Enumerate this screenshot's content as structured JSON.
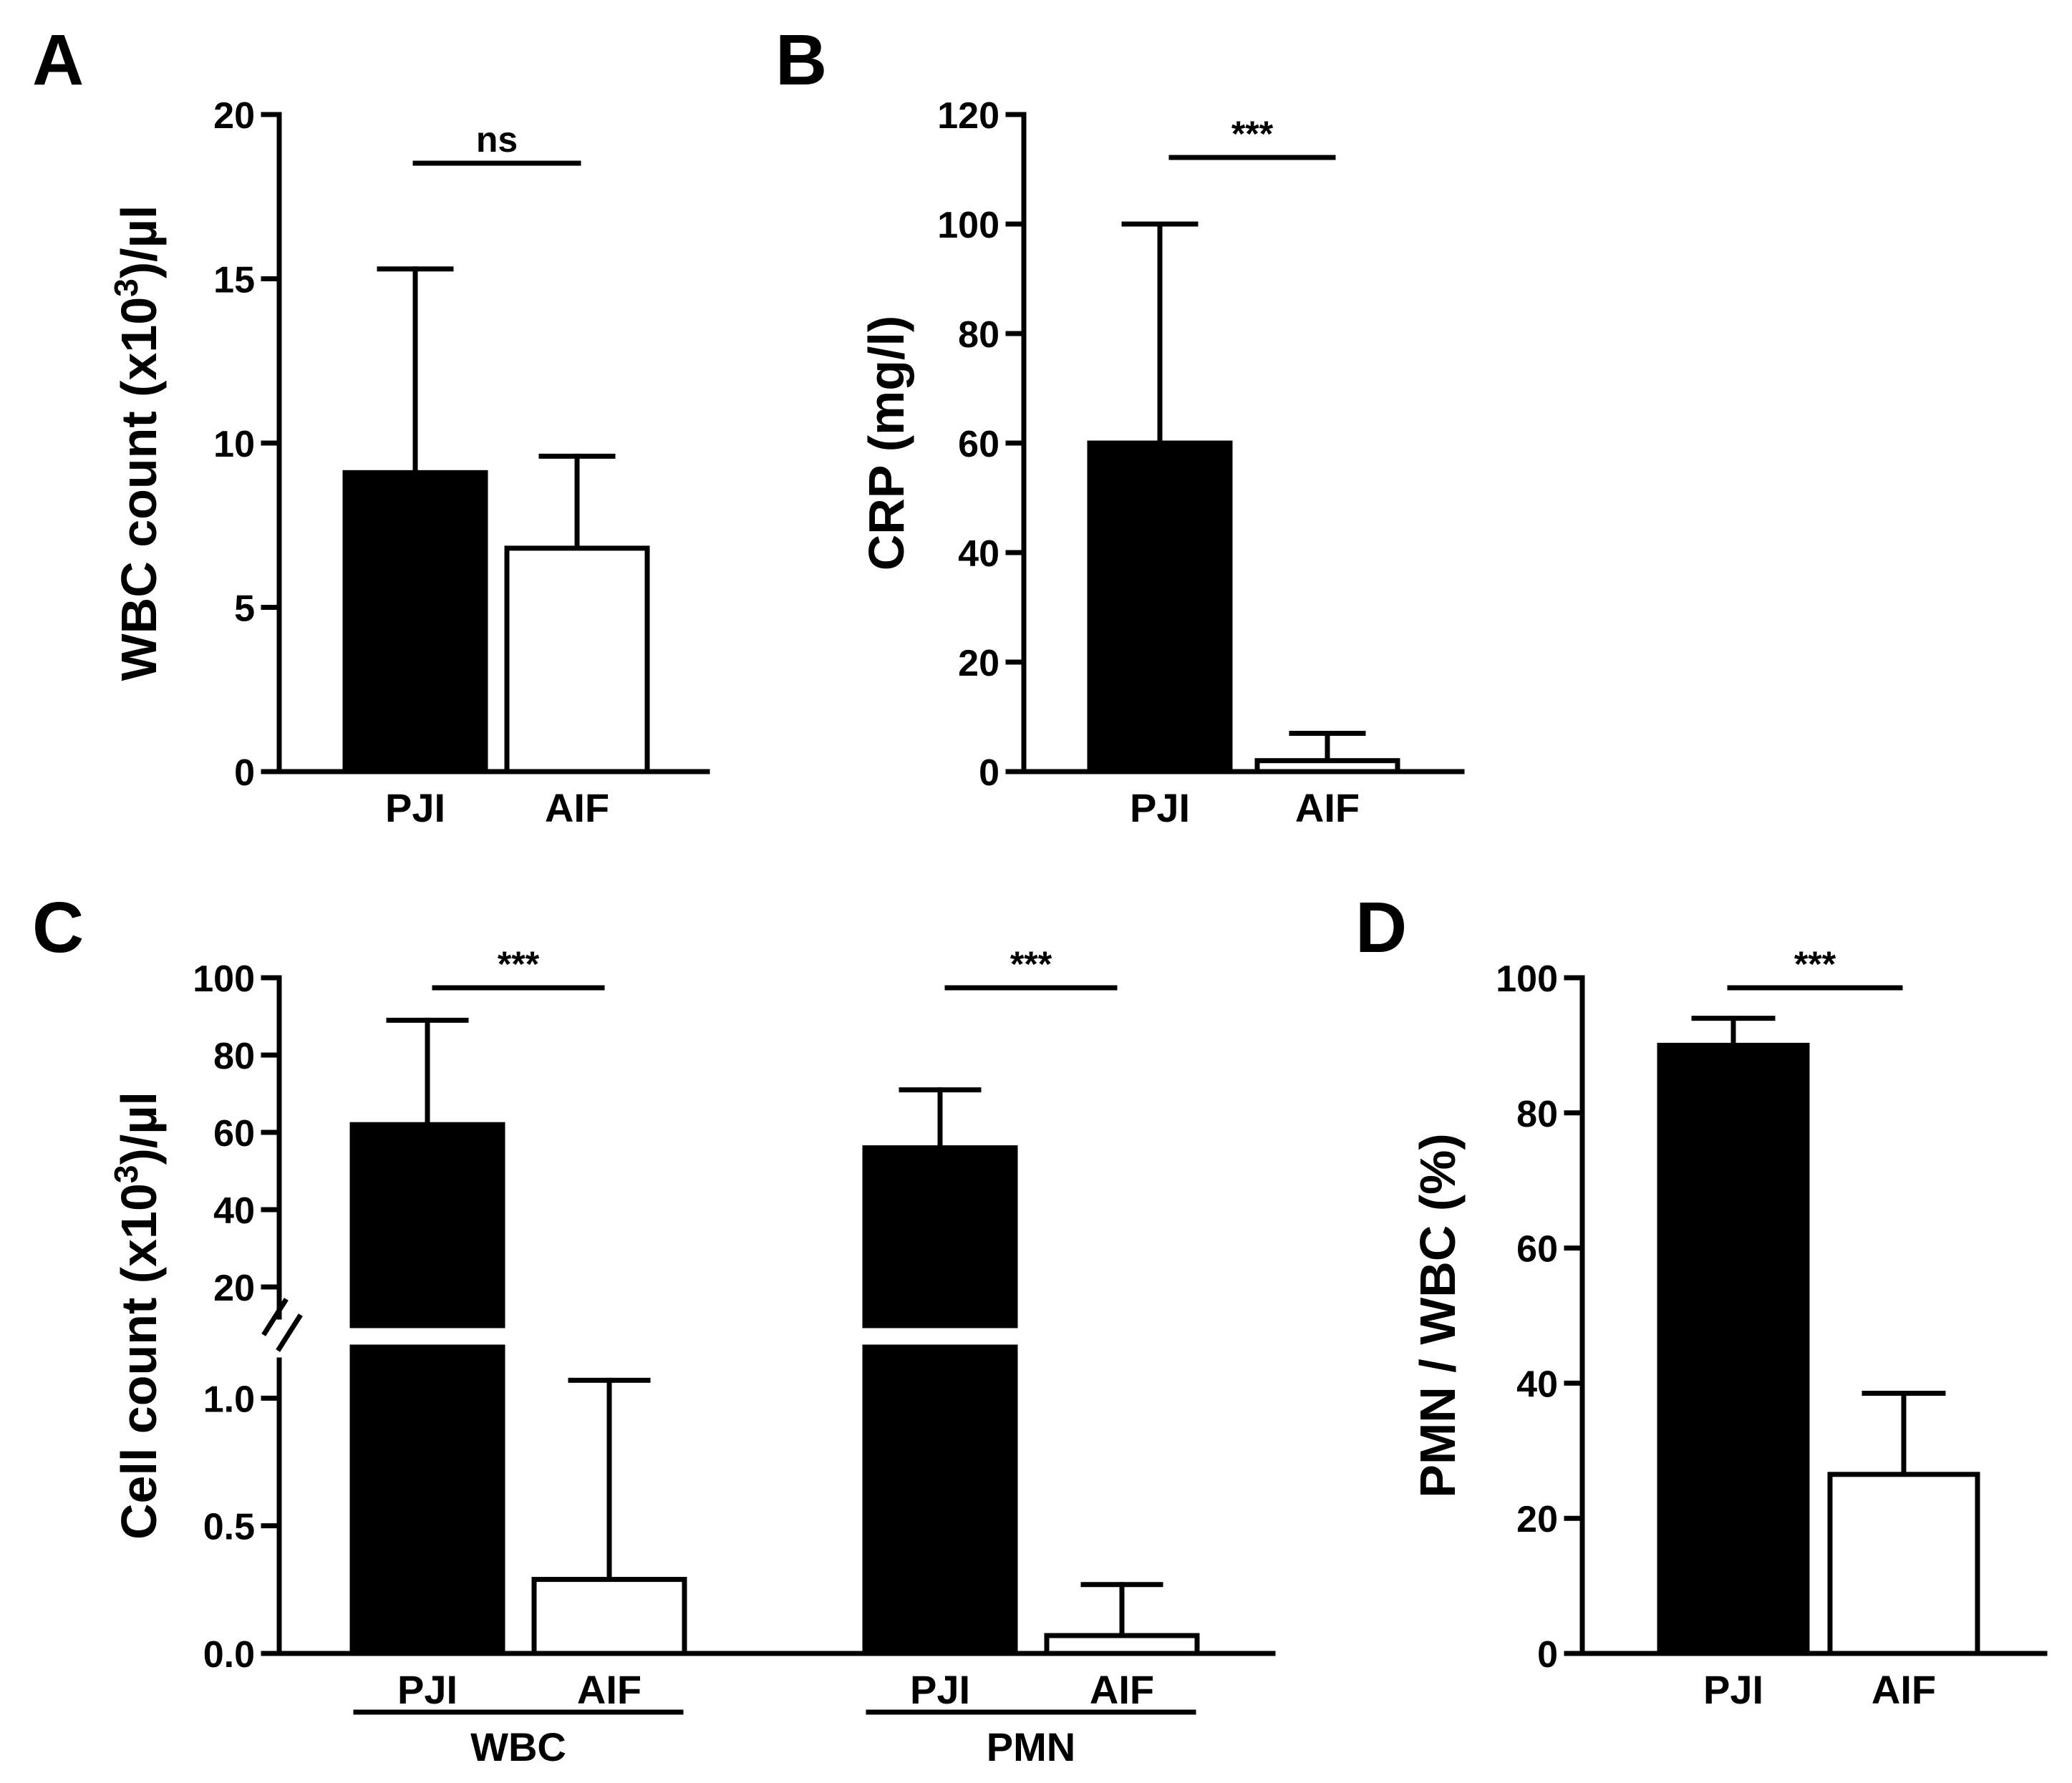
{
  "colors": {
    "filled": "#000000",
    "open": "#ffffff",
    "stroke": "#000000"
  },
  "chart_data": [
    {
      "panel": "A",
      "type": "bar",
      "categories": [
        "PJI",
        "AIF"
      ],
      "values": [
        9.1,
        6.8
      ],
      "error": [
        6.2,
        2.8
      ],
      "fills": [
        "filled",
        "open"
      ],
      "ylabel_main": "WBC count (x10",
      "ylabel_sup": "3",
      "ylabel_end": ")/µl",
      "ylim": [
        0,
        20
      ],
      "yticks": [
        0,
        5,
        10,
        15,
        20
      ],
      "ytick_labels": [
        "0",
        "5",
        "10",
        "15",
        "20"
      ],
      "significance": [
        {
          "from": 0,
          "to": 1,
          "label": "ns"
        }
      ]
    },
    {
      "panel": "B",
      "type": "bar",
      "categories": [
        "PJI",
        "AIF"
      ],
      "values": [
        60,
        2
      ],
      "error": [
        40,
        5
      ],
      "fills": [
        "filled",
        "open"
      ],
      "ylabel_main": "CRP (mg/l)",
      "ylim": [
        0,
        120
      ],
      "yticks": [
        0,
        20,
        40,
        60,
        80,
        100,
        120
      ],
      "ytick_labels": [
        "0",
        "20",
        "40",
        "60",
        "80",
        "100",
        "120"
      ],
      "significance": [
        {
          "from": 0,
          "to": 1,
          "label": "***"
        }
      ]
    },
    {
      "panel": "C",
      "type": "bar",
      "broken_axis": true,
      "groups": [
        {
          "name": "WBC",
          "categories": [
            "PJI",
            "AIF"
          ],
          "values": [
            62,
            0.29
          ],
          "error": [
            27,
            0.78
          ],
          "fills": [
            "filled",
            "open"
          ],
          "significance": "***"
        },
        {
          "name": "PMN",
          "categories": [
            "PJI",
            "AIF"
          ],
          "values": [
            56,
            0.07
          ],
          "error": [
            15,
            0.2
          ],
          "fills": [
            "filled",
            "open"
          ],
          "significance": "***"
        }
      ],
      "ylabel_main": "Cell count (x10",
      "ylabel_sup": "3",
      "ylabel_end": ")/µl",
      "lower_ylim": [
        0,
        1.2
      ],
      "lower_yticks": [
        0,
        0.5,
        1.0
      ],
      "lower_ytick_labels": [
        "0.0",
        "0.5",
        "1.0"
      ],
      "upper_ylim": [
        10,
        100
      ],
      "upper_yticks": [
        20,
        40,
        60,
        80,
        100
      ],
      "upper_ytick_labels": [
        "20",
        "40",
        "60",
        "80",
        "100"
      ]
    },
    {
      "panel": "D",
      "type": "bar",
      "categories": [
        "PJI",
        "AIF"
      ],
      "values": [
        90,
        26.5
      ],
      "error": [
        4,
        12
      ],
      "fills": [
        "filled",
        "open"
      ],
      "ylabel_main": "PMN / WBC (%)",
      "ylim": [
        0,
        100
      ],
      "yticks": [
        0,
        20,
        40,
        60,
        80,
        100
      ],
      "ytick_labels": [
        "0",
        "20",
        "40",
        "60",
        "80",
        "100"
      ],
      "significance": [
        {
          "from": 0,
          "to": 1,
          "label": "***"
        }
      ]
    }
  ]
}
